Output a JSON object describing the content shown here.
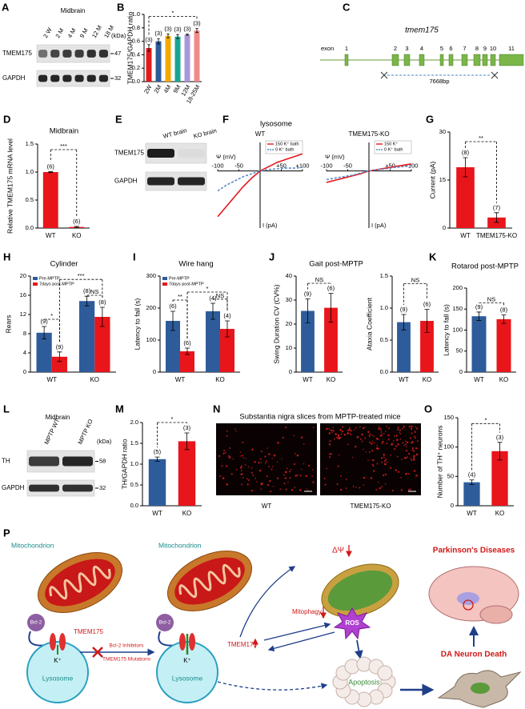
{
  "chart_data": [
    {
      "panel": "B",
      "type": "bar",
      "ylabel": "TMEM175/GAPDH ratio",
      "categories": [
        "2W",
        "2M",
        "4M",
        "9M",
        "12M",
        "18-25M"
      ],
      "values": [
        0.5,
        0.6,
        0.68,
        0.67,
        0.7,
        0.76
      ],
      "errors": [
        0.05,
        0.04,
        0.03,
        0.03,
        0.01,
        0.03
      ],
      "n_labels": [
        "(3)",
        "(3)",
        "(3)",
        "(3)",
        "(3)",
        "(3)"
      ],
      "colors": [
        "#e31a1c",
        "#2e5c9a",
        "#f5a800",
        "#18a594",
        "#a898d8",
        "#f08a8a"
      ],
      "ylim": [
        0,
        1.0
      ],
      "yticks": [
        {
          "value": 0,
          "label": "0.0"
        },
        0.2,
        0.4,
        0.6,
        0.8,
        {
          "value": 1,
          "label": "1.0"
        }
      ],
      "annotations": [
        "*"
      ]
    },
    {
      "panel": "D",
      "type": "bar",
      "title": "Midbrain",
      "ylabel": "Relative TMEM175 mRNA level",
      "categories": [
        "WT",
        "KO"
      ],
      "values": [
        1.0,
        0.02
      ],
      "errors": [
        0.01,
        0.01
      ],
      "n_labels": [
        "(6)",
        "(6)"
      ],
      "colors": [
        "#e8151b",
        "#e8151b"
      ],
      "ylim": [
        0,
        1.5
      ],
      "yticks": [
        {
          "value": 0,
          "label": "0.0"
        },
        0.5,
        {
          "value": 1,
          "label": "1.0"
        },
        1.5
      ],
      "annotations": [
        "***"
      ]
    },
    {
      "panel": "F",
      "type": "line",
      "title": "lysosome",
      "subtitle": "WT",
      "xlabel": "Ψ (mV)",
      "ylabel": "I (pA)",
      "x": [
        -100,
        -80,
        -60,
        -40,
        -20,
        0,
        20,
        40,
        60,
        80,
        100
      ],
      "xlim": [
        -100,
        100
      ],
      "ylim": [
        -40,
        20
      ],
      "xticks": [
        -100,
        -50,
        {
          "value": 50,
          "label": "+50"
        },
        {
          "value": 100,
          "label": "+100"
        }
      ],
      "series": [
        {
          "name": "150 K⁺ bath",
          "color": "#e8151b",
          "style": "solid",
          "values": [
            -32,
            -25,
            -18,
            -11,
            -5,
            0,
            3,
            6,
            8,
            10,
            12
          ]
        },
        {
          "name": "0 K⁺ bath",
          "color": "#5b8ac6",
          "style": "dashed",
          "values": [
            -14,
            -10,
            -7,
            -4,
            -2,
            0,
            1,
            1.5,
            2,
            2,
            2.5
          ]
        }
      ]
    },
    {
      "type": "line",
      "subtitle": "TMEM175-KO",
      "xlabel": "Ψ (mV)",
      "ylabel": "I (pA)",
      "x": [
        -100,
        -80,
        -60,
        -40,
        -20,
        0,
        20,
        40,
        60,
        80,
        100
      ],
      "xlim": [
        -100,
        100
      ],
      "ylim": [
        -40,
        20
      ],
      "xticks": [
        -100,
        -50,
        {
          "value": 50,
          "label": "+50"
        },
        {
          "value": 100,
          "label": "+100"
        }
      ],
      "series": [
        {
          "name": "150 K⁺",
          "color": "#e8151b",
          "style": "solid",
          "values": [
            -8,
            -6.5,
            -5,
            -3.5,
            -2,
            0,
            1,
            2,
            3,
            4,
            5
          ]
        },
        {
          "name": "0 K⁺ bath",
          "color": "#5b8ac6",
          "style": "dashed",
          "values": [
            -6,
            -5,
            -4,
            -3,
            -1.5,
            0,
            1,
            1.5,
            2.5,
            3,
            4
          ]
        }
      ]
    },
    {
      "panel": "G",
      "type": "bar",
      "ylabel": "Current (pA)",
      "categories": [
        "WT",
        "TMEM175-KO"
      ],
      "values": [
        19,
        3.3
      ],
      "errors": [
        3,
        1.5
      ],
      "n_labels": [
        "(8)",
        "(7)"
      ],
      "colors": [
        "#e8151b",
        "#e8151b"
      ],
      "ylim": [
        0,
        30
      ],
      "yticks": [
        0,
        15,
        30
      ],
      "annotations": [
        "**"
      ]
    },
    {
      "panel": "H",
      "type": "bar",
      "title": "Cylinder",
      "ylabel": "Rears",
      "categories": [
        "WT",
        "KO"
      ],
      "series": [
        {
          "name": "Pre-MPTP",
          "color": "#2e5c9a",
          "values": [
            8.2,
            14.8
          ],
          "errors": [
            1.3,
            1.0
          ],
          "n_labels": [
            "(9)",
            "(8)"
          ]
        },
        {
          "name": "7days post-MPTP",
          "color": "#e8151b",
          "values": [
            3.2,
            11.5
          ],
          "errors": [
            1.0,
            2.0
          ],
          "n_labels": [
            "(9)",
            "(8)"
          ]
        }
      ],
      "ylim": [
        0,
        20
      ],
      "yticks": [
        0,
        4,
        8,
        12,
        16,
        20
      ],
      "annotations": [
        "*",
        "***",
        "NS"
      ]
    },
    {
      "panel": "I",
      "type": "bar",
      "title": "Wire hang",
      "ylabel": "Latency to fall (s)",
      "categories": [
        "WT",
        "KO"
      ],
      "series": [
        {
          "name": "Pre-MPTP",
          "color": "#2e5c9a",
          "values": [
            160,
            190
          ],
          "errors": [
            30,
            25
          ],
          "n_labels": [
            "(6)",
            "(4)"
          ]
        },
        {
          "name": "7days post-MPTP",
          "color": "#e8151b",
          "values": [
            65,
            135
          ],
          "errors": [
            10,
            25
          ],
          "n_labels": [
            "(6)",
            "(4)"
          ]
        }
      ],
      "ylim": [
        0,
        300
      ],
      "yticks": [
        0,
        100,
        200,
        300
      ],
      "annotations": [
        "**",
        "*",
        "NS"
      ]
    },
    {
      "panel": "J",
      "type": "bar",
      "title": "Gait post-MPTP",
      "ylabel": "Swing Duration CV (CV%)",
      "categories": [
        "WT",
        "KO"
      ],
      "values": [
        25.5,
        26.8
      ],
      "errors": [
        5,
        6
      ],
      "n_labels": [
        "(9)",
        "(6)"
      ],
      "colors": [
        "#2e5c9a",
        "#e8151b"
      ],
      "ylim": [
        0,
        40
      ],
      "yticks": [
        0,
        10,
        20,
        30,
        40
      ],
      "annotations": [
        "NS"
      ]
    },
    {
      "type": "bar",
      "ylabel": "Ataxia Coefficient",
      "categories": [
        "WT",
        "KO"
      ],
      "values": [
        0.78,
        0.8
      ],
      "errors": [
        0.12,
        0.18
      ],
      "n_labels": [
        "(9)",
        "(6)"
      ],
      "colors": [
        "#2e5c9a",
        "#e8151b"
      ],
      "ylim": [
        0,
        1.5
      ],
      "yticks": [
        {
          "value": 0,
          "label": "0.0"
        },
        0.5,
        {
          "value": 1,
          "label": "1.0"
        },
        1.5
      ],
      "annotations": [
        "NS"
      ]
    },
    {
      "panel": "K",
      "type": "bar",
      "title": "Rotarod post-MPTP",
      "ylabel": "Latency to fall (s)",
      "categories": [
        "WT",
        "KO"
      ],
      "values": [
        133,
        126
      ],
      "errors": [
        10,
        10
      ],
      "n_labels": [
        "(9)",
        "(8)"
      ],
      "colors": [
        "#2e5c9a",
        "#e8151b"
      ],
      "ylim": [
        0,
        200
      ],
      "yticks": [
        0,
        50,
        100,
        150,
        200
      ],
      "annotations": [
        "NS"
      ]
    },
    {
      "panel": "M",
      "type": "bar",
      "ylabel": "TH/GAPDH ratio",
      "categories": [
        "WT",
        "KO"
      ],
      "values": [
        1.12,
        1.55
      ],
      "errors": [
        0.05,
        0.2
      ],
      "n_labels": [
        "(5)",
        "(3)"
      ],
      "colors": [
        "#2e5c9a",
        "#e8151b"
      ],
      "ylim": [
        0,
        2
      ],
      "yticks": [
        {
          "value": 0,
          "label": "0.0"
        },
        0.5,
        {
          "value": 1,
          "label": "1.0"
        },
        1.5,
        {
          "value": 2,
          "label": "2.0"
        }
      ],
      "annotations": [
        "*"
      ]
    },
    {
      "panel": "O",
      "type": "bar",
      "ylabel": "Number of TH⁺ neurons",
      "categories": [
        "WT",
        "KO"
      ],
      "values": [
        40,
        93
      ],
      "errors": [
        4,
        15
      ],
      "n_labels": [
        "(4)",
        "(3)"
      ],
      "colors": [
        "#2e5c9a",
        "#e8151b"
      ],
      "ylim": [
        0,
        150
      ],
      "yticks": [
        0,
        50,
        100,
        150
      ],
      "annotations": [
        "*"
      ]
    }
  ],
  "blots": [
    {
      "panel": "A",
      "title": "Midbrain",
      "lanes": [
        "2 W",
        "2 M",
        "4 M",
        "9 M",
        "12 M",
        "18 M"
      ],
      "unit": "(kDa)",
      "rows": [
        {
          "name": "TMEM175",
          "marker": "47"
        },
        {
          "name": "GAPDH",
          "marker": "32"
        }
      ]
    },
    {
      "panel": "E",
      "lanes": [
        "WT brain",
        "KO brain"
      ],
      "rows": [
        {
          "name": "TMEM175"
        },
        {
          "name": "GAPDH"
        }
      ]
    },
    {
      "panel": "L",
      "title": "Midbrain",
      "lanes": [
        "MPTP WT",
        "MPTP KO"
      ],
      "unit": "(kDa)",
      "rows": [
        {
          "name": "TH",
          "marker": "58"
        },
        {
          "name": "GAPDH",
          "marker": "32"
        }
      ]
    }
  ],
  "gene_diagram": {
    "panel": "C",
    "gene": "tmem175",
    "exon_label": "exon",
    "exons": [
      1,
      2,
      3,
      4,
      5,
      6,
      7,
      8,
      9,
      10,
      11
    ],
    "length": "7668bp"
  },
  "images": {
    "panel": "N",
    "title": "Substantia nigra slices from MPTP-treated mice",
    "labels": [
      "WT",
      "TMEM175-KO"
    ]
  },
  "pathway": {
    "panel": "P",
    "left": {
      "mitochondrion": "Mitochondrion",
      "bcl2": "Bcl-2",
      "channel": "TMEM175",
      "ion": "K⁺",
      "lysosome": "Lysosome",
      "inhibitors": [
        "Bcl-2 Inhibitors",
        "TMEM175 Mutations"
      ]
    },
    "middle": {
      "mitochondrion": "Mitochondrion",
      "bcl2": "Bcl-2",
      "channel": "TMEM175",
      "ion": "K⁺",
      "lysosome": "Lysosome",
      "mitophagy": "Mitophagy",
      "potential": "ΔΨ",
      "ros": "ROS",
      "apoptosis": "Apoptosis"
    },
    "right": {
      "disease": "Parkinson's Diseases",
      "death": "DA Neuron Death"
    }
  }
}
